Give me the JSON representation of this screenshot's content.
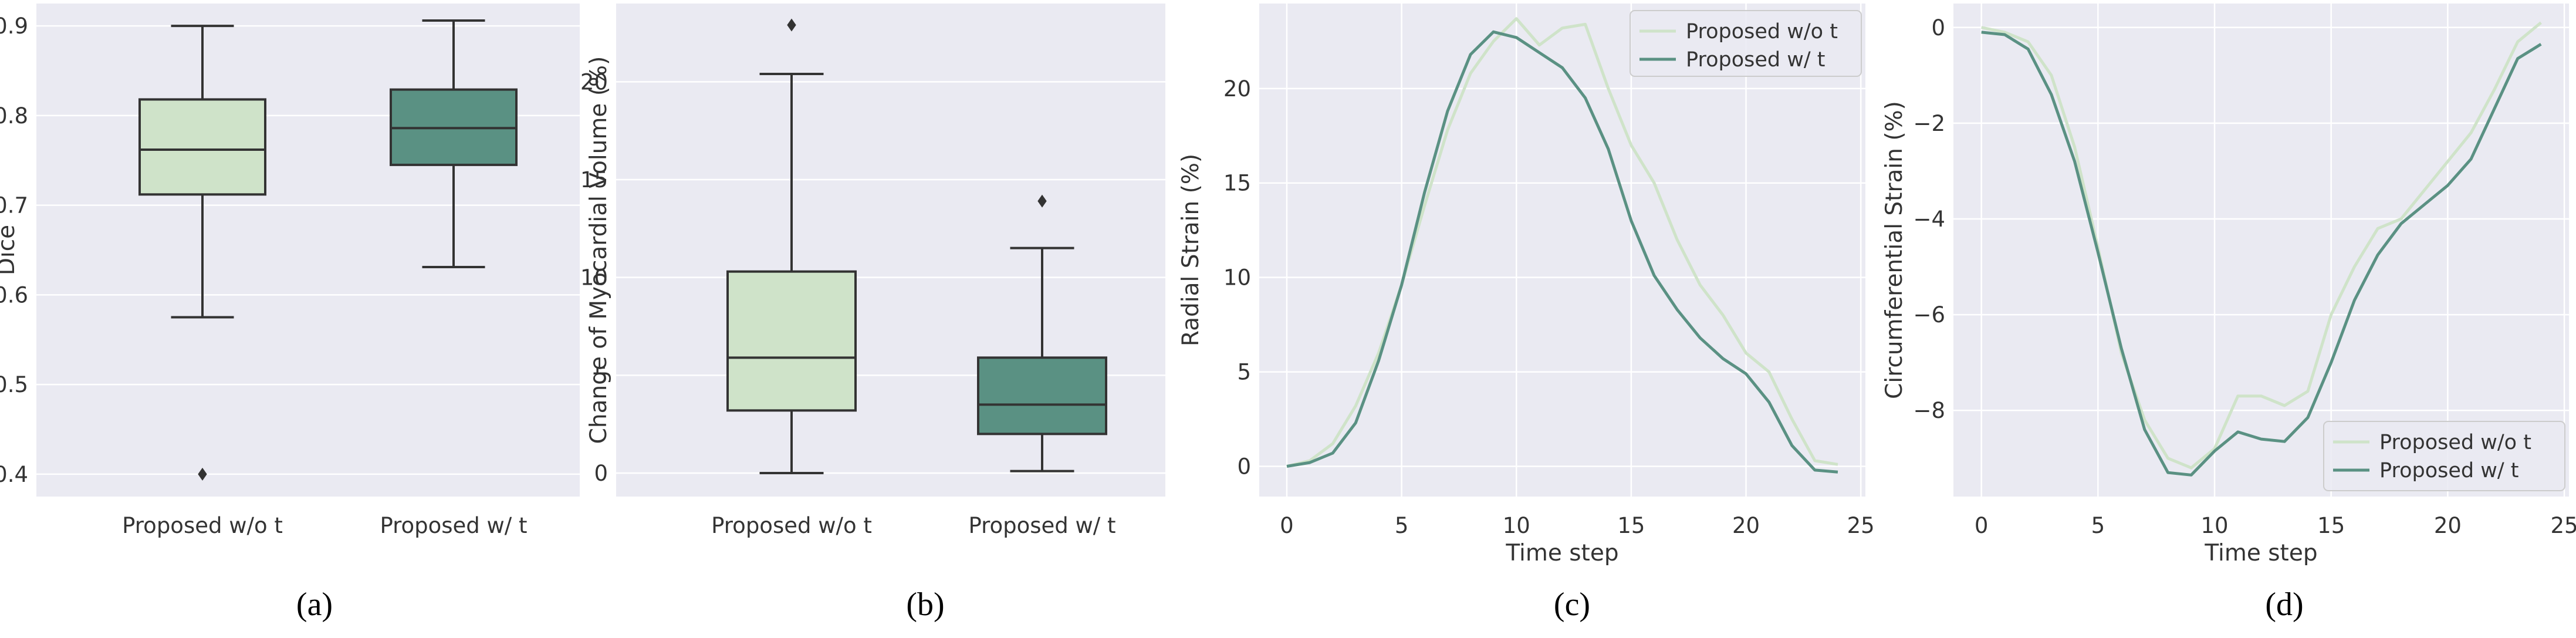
{
  "figure": {
    "captions": [
      "(a)",
      "(b)",
      "(c)",
      "(d)"
    ]
  },
  "colors": {
    "background": "#eaeaf2",
    "grid": "#ffffff",
    "light": "#cfe3c9",
    "dark": "#5a9183",
    "median": "#333333"
  },
  "chart_data": [
    {
      "type": "box",
      "caption": "(a)",
      "ylabel": "Dice",
      "xlabel": "",
      "ylim": [
        0.375,
        0.925
      ],
      "yticks": [
        0.4,
        0.5,
        0.6,
        0.7,
        0.8,
        0.9
      ],
      "ytick_labels": [
        "0.4",
        "0.5",
        "0.6",
        "0.7",
        "0.8",
        "0.9"
      ],
      "categories": [
        "Proposed w/o t",
        "Proposed w/ t"
      ],
      "boxes": [
        {
          "name": "Proposed w/o t",
          "whisker_low": 0.575,
          "q1": 0.712,
          "median": 0.762,
          "q3": 0.818,
          "whisker_high": 0.9,
          "outliers": [
            0.4
          ]
        },
        {
          "name": "Proposed w/ t",
          "whisker_low": 0.631,
          "q1": 0.745,
          "median": 0.786,
          "q3": 0.829,
          "whisker_high": 0.906,
          "outliers": []
        }
      ]
    },
    {
      "type": "box",
      "caption": "(b)",
      "ylabel": "Change of Myocardial Volume (%)",
      "xlabel": "",
      "ylim": [
        -1.2,
        24.0
      ],
      "yticks": [
        0,
        5,
        10,
        15,
        20
      ],
      "ytick_labels": [
        "0",
        "5",
        "10",
        "15",
        "20"
      ],
      "categories": [
        "Proposed w/o t",
        "Proposed w/ t"
      ],
      "boxes": [
        {
          "name": "Proposed w/o t",
          "whisker_low": 0.0,
          "q1": 3.2,
          "median": 5.9,
          "q3": 10.3,
          "whisker_high": 20.4,
          "outliers": [
            22.9
          ]
        },
        {
          "name": "Proposed w/ t",
          "whisker_low": 0.1,
          "q1": 2.0,
          "median": 3.5,
          "q3": 5.9,
          "whisker_high": 11.5,
          "outliers": [
            13.9
          ]
        }
      ]
    },
    {
      "type": "line",
      "caption": "(c)",
      "ylabel": "Radial Strain (%)",
      "xlabel": "Time step",
      "xlim": [
        -1.2,
        25.2
      ],
      "ylim": [
        -1.6,
        24.5
      ],
      "xticks": [
        0,
        5,
        10,
        15,
        20,
        25
      ],
      "xtick_labels": [
        "0",
        "5",
        "10",
        "15",
        "20",
        "25"
      ],
      "yticks": [
        0,
        5,
        10,
        15,
        20
      ],
      "ytick_labels": [
        "0",
        "5",
        "10",
        "15",
        "20"
      ],
      "legend": "top-right",
      "x": [
        0,
        1,
        2,
        3,
        4,
        5,
        6,
        7,
        8,
        9,
        10,
        11,
        12,
        13,
        14,
        15,
        16,
        17,
        18,
        19,
        20,
        21,
        22,
        23,
        24
      ],
      "series": [
        {
          "name": "Proposed w/o t",
          "color": "#cfe3c9",
          "values": [
            0.0,
            0.3,
            1.2,
            3.2,
            6.0,
            9.6,
            13.8,
            17.8,
            20.8,
            22.5,
            23.7,
            22.3,
            23.2,
            23.4,
            20.0,
            17.0,
            15.0,
            12.0,
            9.6,
            8.0,
            6.0,
            5.0,
            2.5,
            0.3,
            0.1
          ]
        },
        {
          "name": "Proposed w/ t",
          "color": "#5a9183",
          "values": [
            0.0,
            0.2,
            0.7,
            2.3,
            5.6,
            9.6,
            14.5,
            18.8,
            21.8,
            23.0,
            22.7,
            21.9,
            21.1,
            19.5,
            16.8,
            13.0,
            10.1,
            8.3,
            6.8,
            5.7,
            4.9,
            3.4,
            1.1,
            -0.2,
            -0.3
          ]
        }
      ]
    },
    {
      "type": "line",
      "caption": "(d)",
      "ylabel": "Circumferential Strain (%)",
      "xlabel": "Time step",
      "xlim": [
        -1.2,
        25.2
      ],
      "ylim": [
        -9.8,
        0.5
      ],
      "xticks": [
        0,
        5,
        10,
        15,
        20,
        25
      ],
      "xtick_labels": [
        "0",
        "5",
        "10",
        "15",
        "20",
        "25"
      ],
      "yticks": [
        -8,
        -6,
        -4,
        -2,
        0
      ],
      "ytick_labels": [
        "−8",
        "−6",
        "−4",
        "−2",
        "0"
      ],
      "legend": "bottom-right",
      "x": [
        0,
        1,
        2,
        3,
        4,
        5,
        6,
        7,
        8,
        9,
        10,
        11,
        12,
        13,
        14,
        15,
        16,
        17,
        18,
        19,
        20,
        21,
        22,
        23,
        24
      ],
      "series": [
        {
          "name": "Proposed w/o t",
          "color": "#cfe3c9",
          "values": [
            0.0,
            -0.1,
            -0.3,
            -1.0,
            -2.5,
            -4.6,
            -6.8,
            -8.2,
            -9.0,
            -9.2,
            -8.8,
            -7.7,
            -7.7,
            -7.9,
            -7.6,
            -6.0,
            -5.0,
            -4.2,
            -4.0,
            -3.4,
            -2.8,
            -2.2,
            -1.3,
            -0.3,
            0.1
          ]
        },
        {
          "name": "Proposed w/ t",
          "color": "#5a9183",
          "values": [
            -0.1,
            -0.15,
            -0.45,
            -1.4,
            -2.8,
            -4.7,
            -6.7,
            -8.4,
            -9.3,
            -9.35,
            -8.85,
            -8.45,
            -8.6,
            -8.65,
            -8.15,
            -7.0,
            -5.7,
            -4.75,
            -4.1,
            -3.7,
            -3.3,
            -2.75,
            -1.7,
            -0.65,
            -0.35
          ]
        }
      ]
    }
  ]
}
